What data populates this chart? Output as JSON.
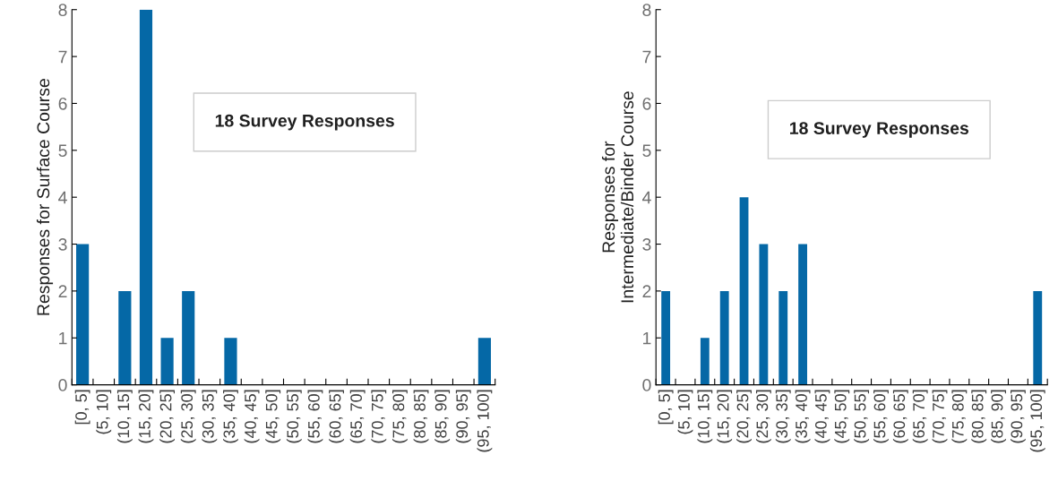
{
  "chart_data": [
    {
      "type": "bar",
      "ylabel": "Responses for Surface Course",
      "categories": [
        "[0, 5]",
        "(5, 10]",
        "(10, 15]",
        "(15, 20]",
        "(20, 25]",
        "(25, 30]",
        "(30, 35]",
        "(35, 40]",
        "(40, 45]",
        "(45, 50]",
        "(50, 55]",
        "(55, 60]",
        "(60, 65]",
        "(65, 70]",
        "(70, 75]",
        "(75, 80]",
        "(80, 85]",
        "(85, 90]",
        "(90, 95]",
        "(95, 100]"
      ],
      "values": [
        3,
        0,
        2,
        8,
        1,
        2,
        0,
        1,
        0,
        0,
        0,
        0,
        0,
        0,
        0,
        0,
        0,
        0,
        0,
        1
      ],
      "color": "#0568a6",
      "ylim": [
        0,
        8
      ],
      "yticks": [
        0,
        1,
        2,
        3,
        4,
        5,
        6,
        7,
        8
      ],
      "grid": false,
      "annotations": [
        "18 Survey Responses"
      ]
    },
    {
      "type": "bar",
      "ylabel": "Responses for\nIntermediate/Binder Course",
      "categories": [
        "[0, 5]",
        "(5, 10]",
        "(10, 15]",
        "(15, 20]",
        "(20, 25]",
        "(25, 30]",
        "(30, 35]",
        "(35, 40]",
        "(40, 45]",
        "(45, 50]",
        "(50, 55]",
        "(55, 60]",
        "(60, 65]",
        "(65, 70]",
        "(70, 75]",
        "(75, 80]",
        "(80, 85]",
        "(85, 90]",
        "(90, 95]",
        "(95, 100]"
      ],
      "values": [
        2,
        0,
        1,
        2,
        4,
        3,
        2,
        3,
        0,
        0,
        0,
        0,
        0,
        0,
        0,
        0,
        0,
        0,
        0,
        2
      ],
      "color": "#0568a6",
      "ylim": [
        0,
        8
      ],
      "yticks": [
        0,
        1,
        2,
        3,
        4,
        5,
        6,
        7,
        8
      ],
      "grid": false,
      "annotations": [
        "18 Survey Responses"
      ]
    }
  ]
}
